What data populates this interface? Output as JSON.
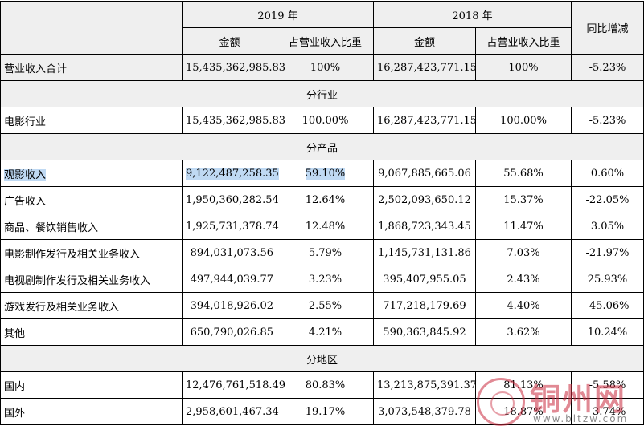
{
  "header": {
    "year_2019": "2019 年",
    "year_2018": "2018 年",
    "yoy": "同比增减",
    "amount": "金额",
    "ratio": "占营业收入比重"
  },
  "total_row": {
    "label": "营业收入合计",
    "a2019": "15,435,362,985.83",
    "r2019": "100%",
    "a2018": "16,287,423,771.15",
    "r2018": "100%",
    "yoy": "-5.23%"
  },
  "sections": {
    "industry": "分行业",
    "product": "分产品",
    "region": "分地区"
  },
  "industry_rows": [
    {
      "label": "电影行业",
      "a2019": "15,435,362,985.83",
      "r2019": "100.00%",
      "a2018": "16,287,423,771.15",
      "r2018": "100.00%",
      "yoy": "-5.23%"
    }
  ],
  "product_rows": [
    {
      "label": "观影收入",
      "a2019": "9,122,487,258.35",
      "r2019": "59.10%",
      "a2018": "9,067,885,665.06",
      "r2018": "55.68%",
      "yoy": "0.60%"
    },
    {
      "label": "广告收入",
      "a2019": "1,950,360,282.54",
      "r2019": "12.64%",
      "a2018": "2,502,093,650.12",
      "r2018": "15.37%",
      "yoy": "-22.05%"
    },
    {
      "label": "商品、餐饮销售收入",
      "a2019": "1,925,731,378.74",
      "r2019": "12.48%",
      "a2018": "1,868,723,343.45",
      "r2018": "11.47%",
      "yoy": "3.05%"
    },
    {
      "label": "电影制作发行及相关业务收入",
      "a2019": "894,031,073.56",
      "r2019": "5.79%",
      "a2018": "1,145,731,131.86",
      "r2018": "7.03%",
      "yoy": "-21.97%"
    },
    {
      "label": "电视剧制作发行及相关业务收入",
      "a2019": "497,944,039.77",
      "r2019": "3.23%",
      "a2018": "395,407,955.05",
      "r2018": "2.43%",
      "yoy": "25.93%"
    },
    {
      "label": "游戏发行及相关业务收入",
      "a2019": "394,018,926.02",
      "r2019": "2.55%",
      "a2018": "717,218,179.69",
      "r2018": "4.40%",
      "yoy": "-45.06%"
    },
    {
      "label": "其他",
      "a2019": "650,790,026.85",
      "r2019": "4.21%",
      "a2018": "590,363,845.92",
      "r2018": "3.62%",
      "yoy": "10.24%"
    }
  ],
  "region_rows": [
    {
      "label": "国内",
      "a2019": "12,476,761,518.49",
      "r2019": "80.83%",
      "a2018": "13,213,875,391.37",
      "r2018": "81.13%",
      "yoy": "-5.58%"
    },
    {
      "label": "国外",
      "a2019": "2,958,601,467.34",
      "r2019": "19.17%",
      "a2018": "3,073,548,379.78",
      "r2018": "18.87%",
      "yoy": "-3.74%"
    }
  ],
  "watermark": {
    "text": "铜州网",
    "url": "www.bltzw.com"
  },
  "colors": {
    "shade": "#efefef",
    "highlight": "#bfd9f3"
  }
}
